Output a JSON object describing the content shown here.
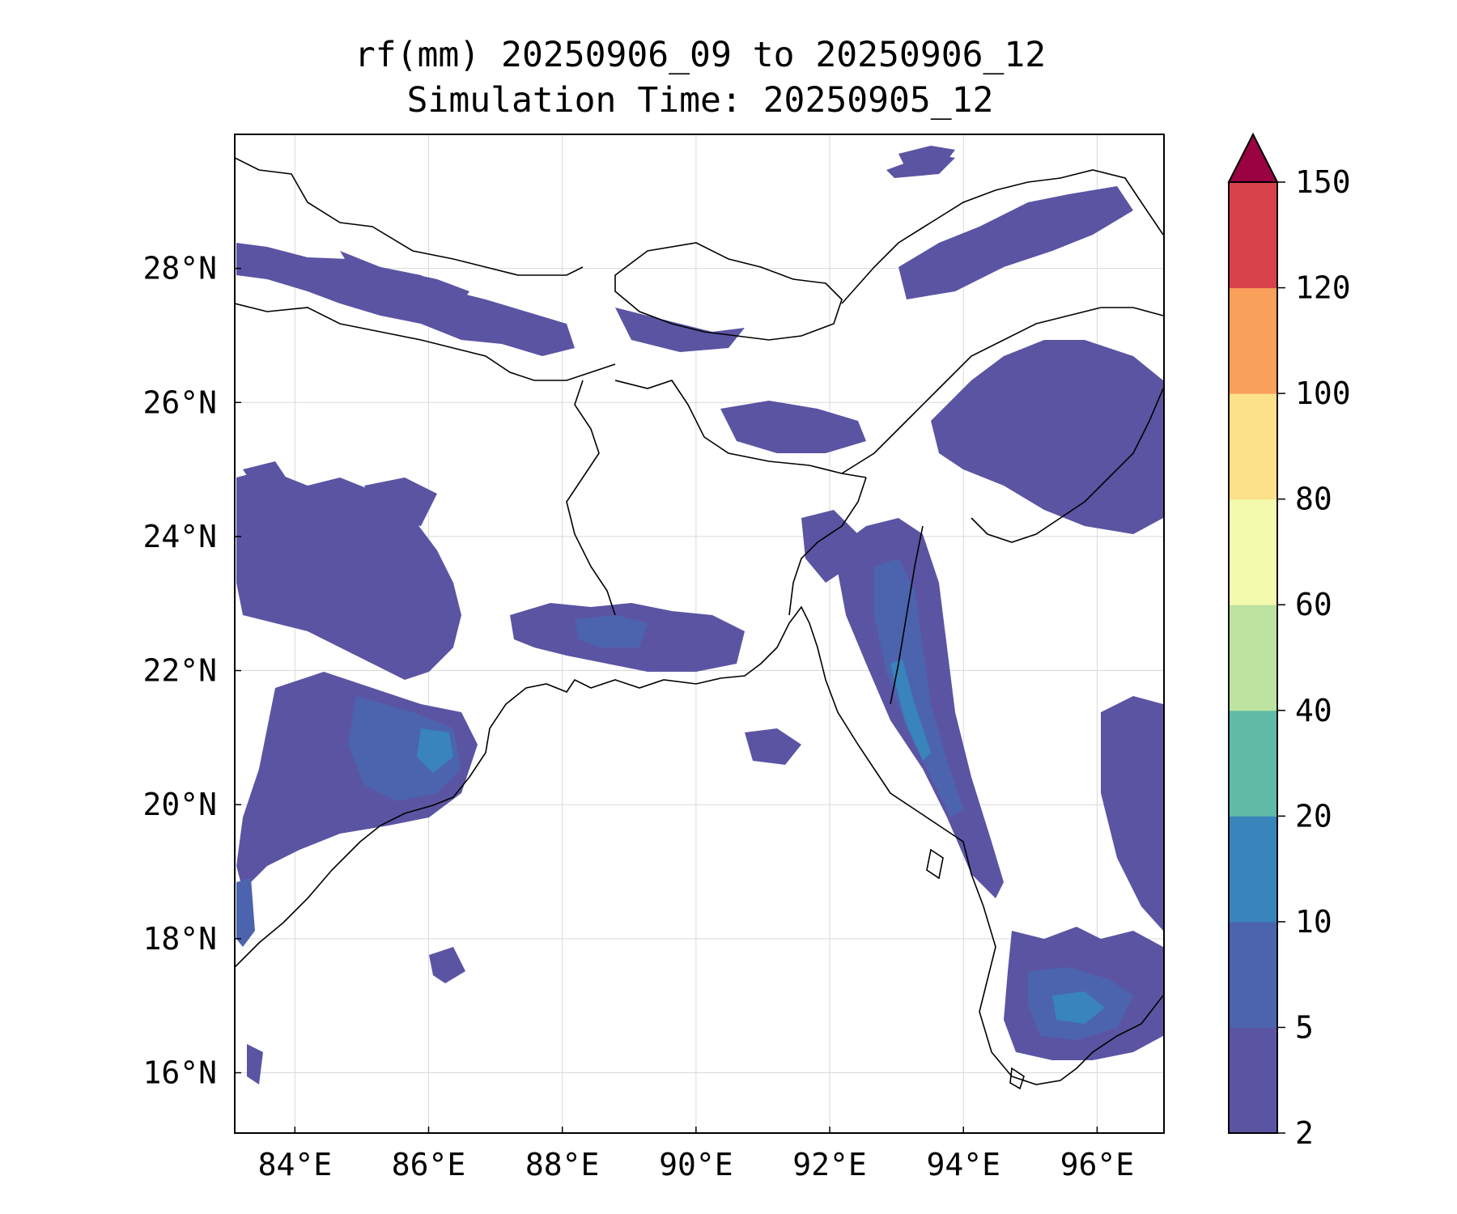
{
  "title": {
    "line1": "rf(mm) 20250906_09 to 20250906_12",
    "line2": "Simulation Time: 20250905_12"
  },
  "map": {
    "lon_range": [
      83.1,
      97.0
    ],
    "lat_range": [
      15.1,
      30.0
    ],
    "x_ticks": [
      "84°E",
      "86°E",
      "88°E",
      "90°E",
      "92°E",
      "94°E",
      "96°E"
    ],
    "y_ticks": [
      "28°N",
      "26°N",
      "24°N",
      "22°N",
      "20°N",
      "18°N",
      "16°N"
    ],
    "gridlines": true
  },
  "colorbar": {
    "levels": [
      "2",
      "5",
      "10",
      "20",
      "40",
      "60",
      "80",
      "100",
      "120",
      "150"
    ],
    "colors": [
      "#5b54a3",
      "#4c64ae",
      "#3884bb",
      "#5fbaa6",
      "#bde3a1",
      "#f3f9ad",
      "#fce08a",
      "#f9a05a",
      "#d8424a"
    ],
    "extend_color": "#9a0241",
    "extend": "max"
  }
}
